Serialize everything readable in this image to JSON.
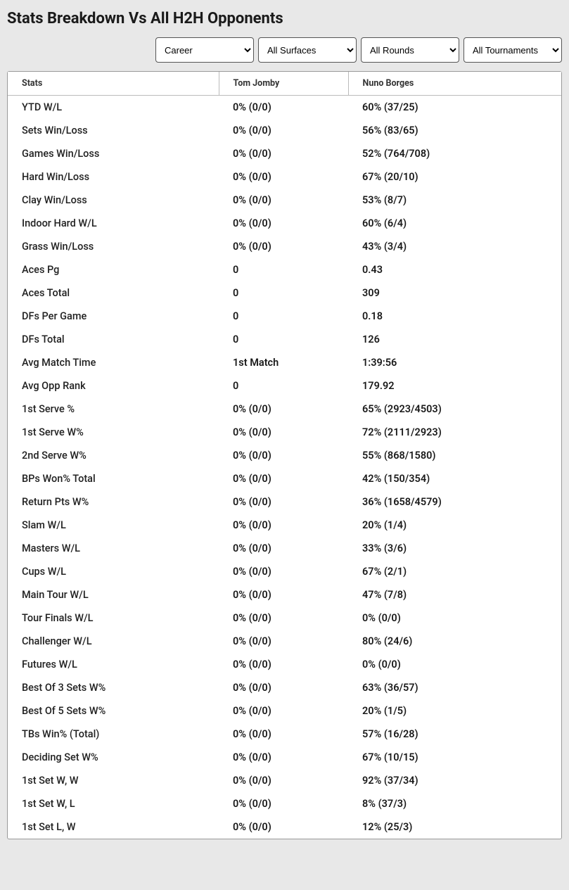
{
  "title": "Stats Breakdown Vs All H2H Opponents",
  "filters": {
    "career": "Career",
    "surface": "All Surfaces",
    "round": "All Rounds",
    "tournament": "All Tournaments"
  },
  "columns": {
    "stats": "Stats",
    "p1": "Tom Jomby",
    "p2": "Nuno Borges"
  },
  "rows": [
    {
      "label": "YTD W/L",
      "p1": "0% (0/0)",
      "p2": "60% (37/25)"
    },
    {
      "label": "Sets Win/Loss",
      "p1": "0% (0/0)",
      "p2": "56% (83/65)"
    },
    {
      "label": "Games Win/Loss",
      "p1": "0% (0/0)",
      "p2": "52% (764/708)"
    },
    {
      "label": "Hard Win/Loss",
      "p1": "0% (0/0)",
      "p2": "67% (20/10)"
    },
    {
      "label": "Clay Win/Loss",
      "p1": "0% (0/0)",
      "p2": "53% (8/7)"
    },
    {
      "label": "Indoor Hard W/L",
      "p1": "0% (0/0)",
      "p2": "60% (6/4)"
    },
    {
      "label": "Grass Win/Loss",
      "p1": "0% (0/0)",
      "p2": "43% (3/4)"
    },
    {
      "label": "Aces Pg",
      "p1": "0",
      "p2": "0.43"
    },
    {
      "label": "Aces Total",
      "p1": "0",
      "p2": "309"
    },
    {
      "label": "DFs Per Game",
      "p1": "0",
      "p2": "0.18"
    },
    {
      "label": "DFs Total",
      "p1": "0",
      "p2": "126"
    },
    {
      "label": "Avg Match Time",
      "p1": "1st Match",
      "p2": "1:39:56"
    },
    {
      "label": "Avg Opp Rank",
      "p1": "0",
      "p2": "179.92"
    },
    {
      "label": "1st Serve %",
      "p1": "0% (0/0)",
      "p2": "65% (2923/4503)"
    },
    {
      "label": "1st Serve W%",
      "p1": "0% (0/0)",
      "p2": "72% (2111/2923)"
    },
    {
      "label": "2nd Serve W%",
      "p1": "0% (0/0)",
      "p2": "55% (868/1580)"
    },
    {
      "label": "BPs Won% Total",
      "p1": "0% (0/0)",
      "p2": "42% (150/354)"
    },
    {
      "label": "Return Pts W%",
      "p1": "0% (0/0)",
      "p2": "36% (1658/4579)"
    },
    {
      "label": "Slam W/L",
      "p1": "0% (0/0)",
      "p2": "20% (1/4)"
    },
    {
      "label": "Masters W/L",
      "p1": "0% (0/0)",
      "p2": "33% (3/6)"
    },
    {
      "label": "Cups W/L",
      "p1": "0% (0/0)",
      "p2": "67% (2/1)"
    },
    {
      "label": "Main Tour W/L",
      "p1": "0% (0/0)",
      "p2": "47% (7/8)"
    },
    {
      "label": "Tour Finals W/L",
      "p1": "0% (0/0)",
      "p2": "0% (0/0)"
    },
    {
      "label": "Challenger W/L",
      "p1": "0% (0/0)",
      "p2": "80% (24/6)"
    },
    {
      "label": "Futures W/L",
      "p1": "0% (0/0)",
      "p2": "0% (0/0)"
    },
    {
      "label": "Best Of 3 Sets W%",
      "p1": "0% (0/0)",
      "p2": "63% (36/57)"
    },
    {
      "label": "Best Of 5 Sets W%",
      "p1": "0% (0/0)",
      "p2": "20% (1/5)"
    },
    {
      "label": "TBs Win% (Total)",
      "p1": "0% (0/0)",
      "p2": "57% (16/28)"
    },
    {
      "label": "Deciding Set W%",
      "p1": "0% (0/0)",
      "p2": "67% (10/15)"
    },
    {
      "label": "1st Set W, W",
      "p1": "0% (0/0)",
      "p2": "92% (37/34)"
    },
    {
      "label": "1st Set W, L",
      "p1": "0% (0/0)",
      "p2": "8% (37/3)"
    },
    {
      "label": "1st Set L, W",
      "p1": "0% (0/0)",
      "p2": "12% (25/3)"
    }
  ]
}
